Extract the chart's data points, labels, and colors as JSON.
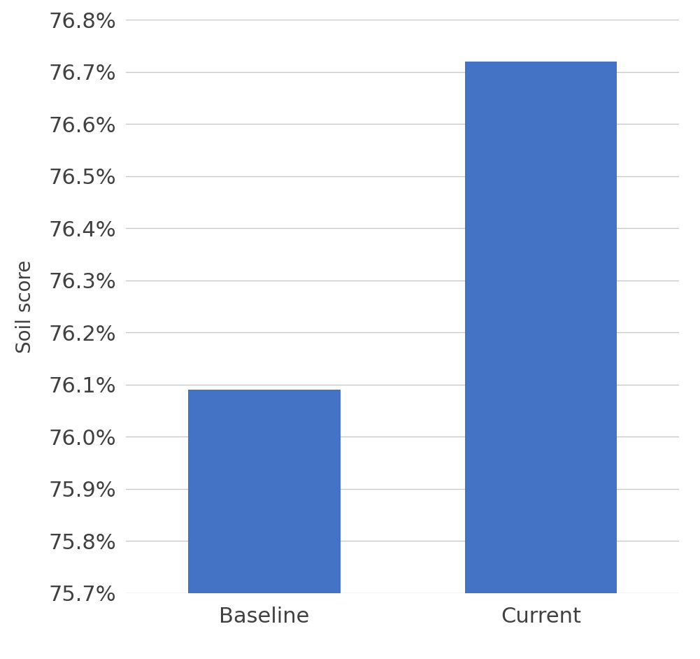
{
  "categories": [
    "Baseline",
    "Current"
  ],
  "values": [
    0.7609,
    0.7672
  ],
  "bar_color": "#4472C4",
  "ylabel": "Soil score",
  "ylim": [
    0.757,
    0.768
  ],
  "yticks": [
    0.757,
    0.758,
    0.759,
    0.76,
    0.761,
    0.762,
    0.763,
    0.764,
    0.765,
    0.766,
    0.767,
    0.768
  ],
  "background_color": "#ffffff",
  "grid_color": "#c8c8c8",
  "tick_label_color": "#404040",
  "ylabel_color": "#404040",
  "bar_width": 0.55,
  "ylabel_fontsize": 20,
  "ytick_fontsize": 22,
  "xtick_fontsize": 22,
  "xlim": [
    -0.5,
    1.5
  ]
}
